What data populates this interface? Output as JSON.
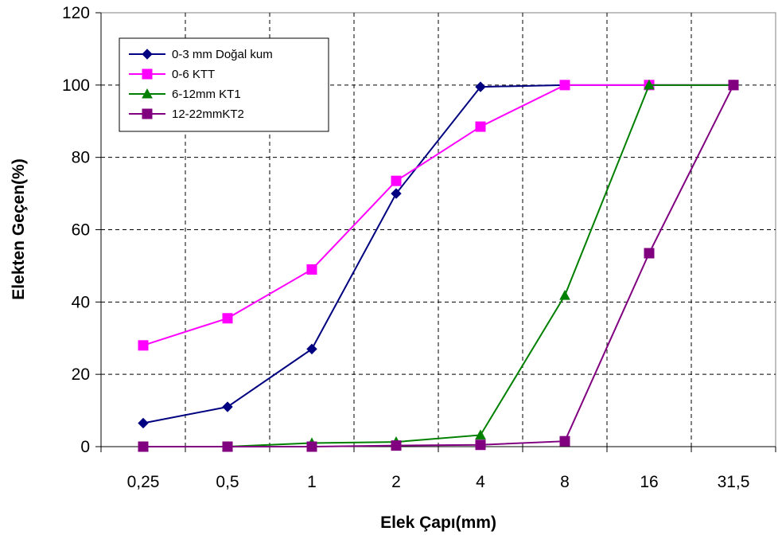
{
  "chart_data": {
    "type": "line",
    "title": "",
    "xlabel": "Elek Çapı(mm)",
    "ylabel": "Elekten Geçen(%)",
    "categories": [
      "0,25",
      "0,5",
      "1",
      "2",
      "4",
      "8",
      "16",
      "31,5"
    ],
    "ylim": [
      0,
      120
    ],
    "yticks": [
      0,
      20,
      40,
      60,
      80,
      100,
      120
    ],
    "grid": true,
    "legend_position": "top-left",
    "series": [
      {
        "name": "0-3 mm Doğal kum",
        "color": "#000080",
        "marker": "diamond",
        "values": [
          6.5,
          11,
          27,
          70,
          99.5,
          100,
          100,
          100
        ]
      },
      {
        "name": "0-6 KTT",
        "color": "#FF00FF",
        "marker": "square",
        "values": [
          28,
          35.5,
          49,
          73.5,
          88.5,
          100,
          100,
          100
        ]
      },
      {
        "name": "6-12mm KT1",
        "color": "#008000",
        "marker": "triangle",
        "values": [
          0,
          0,
          1,
          1.3,
          3.2,
          41.8,
          100,
          100
        ]
      },
      {
        "name": "12-22mmKT2",
        "color": "#800080",
        "marker": "square",
        "values": [
          0,
          0,
          0,
          0.3,
          0.5,
          1.5,
          53.5,
          100
        ]
      }
    ]
  }
}
